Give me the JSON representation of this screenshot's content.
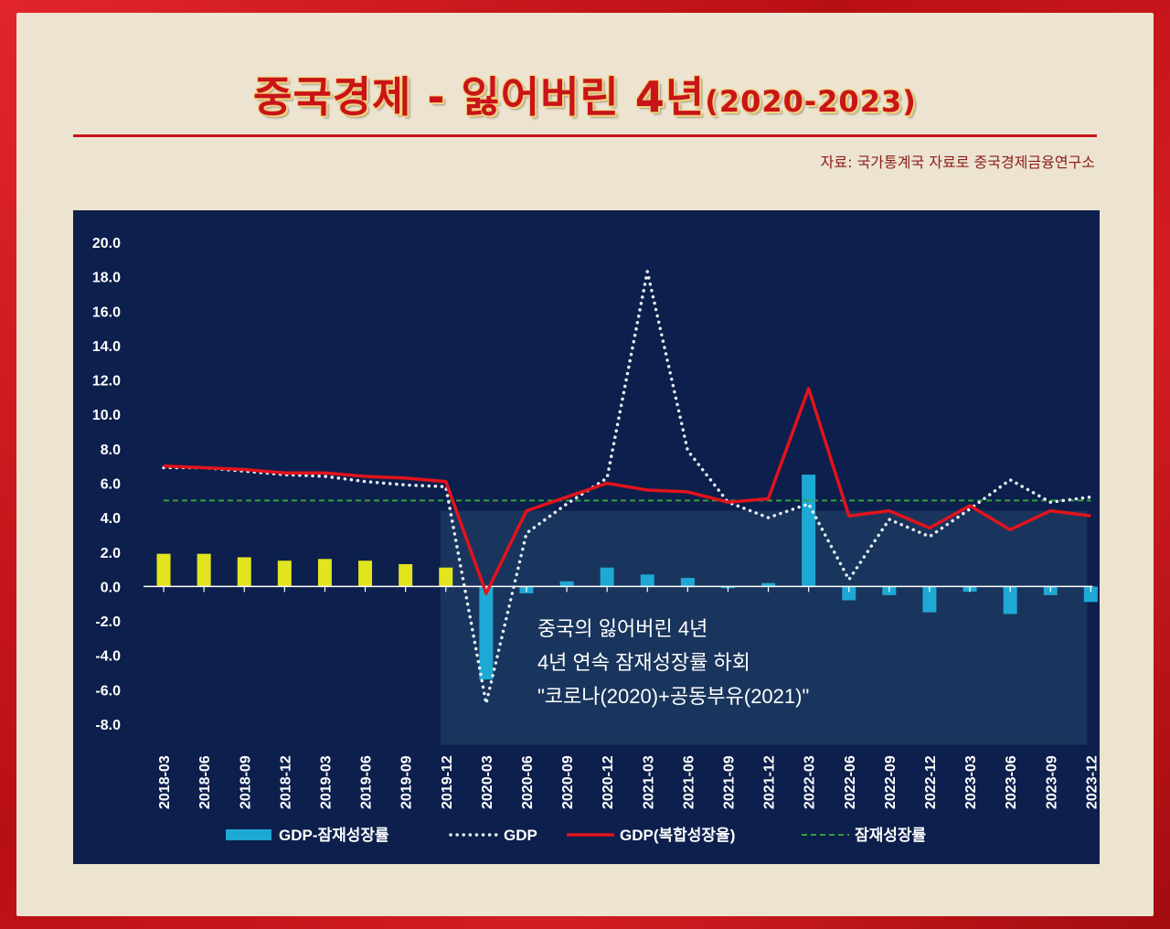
{
  "page": {
    "title_main": "중국경제 - 잃어버린 4년",
    "title_period": "(2020-2023)",
    "source": "자료: 국가통계국 자료로 중국경제금융연구소"
  },
  "chart_data": {
    "type": "bar",
    "title": "",
    "xlabel": "",
    "ylabel": "",
    "ylim": [
      -8,
      20
    ],
    "yticks": [
      "20.0",
      "18.0",
      "16.0",
      "14.0",
      "12.0",
      "10.0",
      "8.0",
      "6.0",
      "4.0",
      "2.0",
      "0.0",
      "-2.0",
      "-4.0",
      "-6.0",
      "-8.0"
    ],
    "legend_position": "bottom",
    "categories": [
      "2018-03",
      "2018-06",
      "2018-09",
      "2018-12",
      "2019-03",
      "2019-06",
      "2019-09",
      "2019-12",
      "2020-03",
      "2020-06",
      "2020-09",
      "2020-12",
      "2021-03",
      "2021-06",
      "2021-09",
      "2021-12",
      "2022-03",
      "2022-06",
      "2022-09",
      "2022-12",
      "2023-03",
      "2023-06",
      "2023-09",
      "2023-12"
    ],
    "series": [
      {
        "name": "GDP-잠재성장률",
        "kind": "bar",
        "values": [
          1.9,
          1.9,
          1.7,
          1.5,
          1.6,
          1.5,
          1.3,
          1.1,
          -5.4,
          -0.4,
          0.3,
          1.1,
          0.7,
          0.5,
          -0.1,
          0.2,
          6.5,
          -0.8,
          -0.5,
          -1.5,
          -0.3,
          -1.6,
          -0.5,
          -0.9
        ]
      },
      {
        "name": "GDP",
        "kind": "line",
        "style": "dotted",
        "values": [
          6.9,
          6.9,
          6.7,
          6.5,
          6.4,
          6.1,
          5.9,
          5.8,
          -6.8,
          3.1,
          4.8,
          6.3,
          18.3,
          7.9,
          4.9,
          4.0,
          4.8,
          0.4,
          3.9,
          2.9,
          4.5,
          6.2,
          4.9,
          5.2
        ]
      },
      {
        "name": "GDP(복합성장율)",
        "kind": "line",
        "style": "solid",
        "values": [
          7.0,
          6.9,
          6.8,
          6.6,
          6.6,
          6.4,
          6.3,
          6.1,
          -0.4,
          4.4,
          5.2,
          6.0,
          5.6,
          5.5,
          4.9,
          5.1,
          11.5,
          4.1,
          4.4,
          3.4,
          4.7,
          3.3,
          4.4,
          4.1
        ]
      },
      {
        "name": "잠재성장률",
        "kind": "line",
        "style": "dashed",
        "values": [
          5.0,
          5.0,
          5.0,
          5.0,
          5.0,
          5.0,
          5.0,
          5.0,
          5.0,
          5.0,
          5.0,
          5.0,
          5.0,
          5.0,
          5.0,
          5.0,
          5.0,
          5.0,
          5.0,
          5.0,
          5.0,
          5.0,
          5.0,
          5.0
        ]
      }
    ],
    "annotation": {
      "lines": [
        "중국의 잃어버린 4년",
        "4년 연속 잠재성장률 하회",
        "\"코로나(2020)+공동부유(2021)\""
      ]
    },
    "colors": {
      "panel_bg": "#0d1f4c",
      "bar_pre": "#e2e41e",
      "bar_post": "#1ea8d4",
      "gdp_dotted": "#e8eef2",
      "gdp_composite": "#e3131b",
      "potential": "#2fa33c",
      "annotation_box": "#1e3d63",
      "title": "#c8141a"
    }
  }
}
